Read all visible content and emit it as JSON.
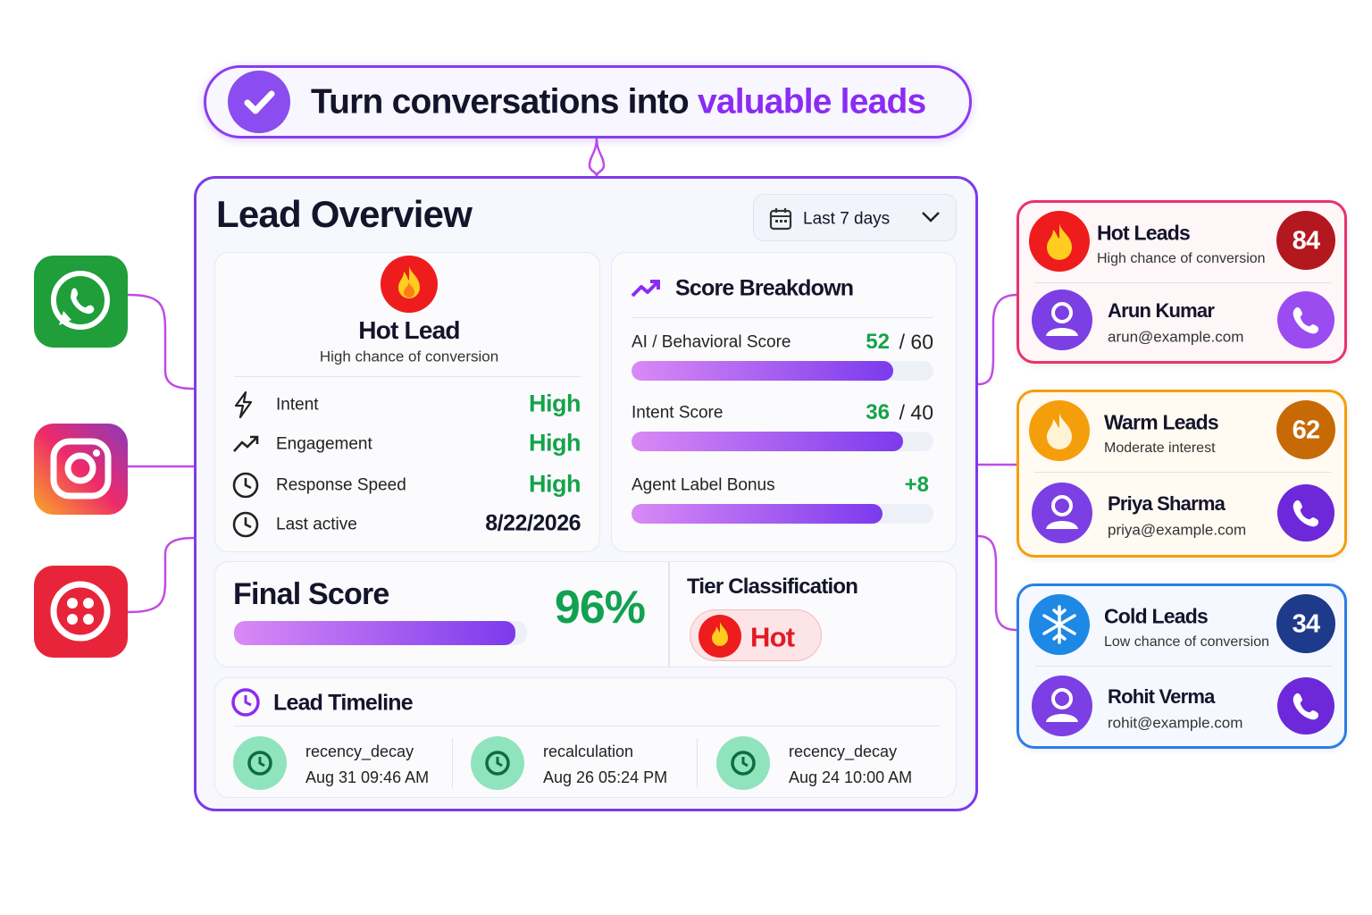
{
  "header": {
    "title": "Turn conversations into",
    "highlight": "valuable leads"
  },
  "overview": {
    "title": "Lead Overview",
    "date_range": "Last 7 days",
    "lead": {
      "tier": "Hot Lead",
      "subtitle": "High chance of conversion",
      "metrics": [
        {
          "label": "Intent",
          "value": "High"
        },
        {
          "label": "Engagement",
          "value": "High"
        },
        {
          "label": "Response Speed",
          "value": "High"
        },
        {
          "label": "Last active",
          "value": "8/22/2026"
        }
      ]
    },
    "score_breakdown": {
      "title": "Score Breakdown",
      "items": [
        {
          "label": "AI / Behavioral Score",
          "score": 52,
          "max": {
            "value": 60,
            "label": "/ 60"
          }
        },
        {
          "label": "Intent Score",
          "score": 36,
          "max": {
            "value": 40,
            "label": "/ 40"
          }
        },
        {
          "label": "Agent Label Bonus",
          "score": {
            "value": 8,
            "label": "+8"
          }
        }
      ]
    },
    "final_score": {
      "title": "Final Score",
      "score": {
        "value": 96,
        "label": "96%"
      }
    },
    "tier": {
      "title": "Tier Classification",
      "label": "Hot"
    },
    "timeline": {
      "title": "Lead Timeline",
      "events": [
        {
          "event": "recency_decay",
          "time": "Aug 31 09:46 AM"
        },
        {
          "event": "recalculation",
          "time": "Aug 26 05:24 PM"
        },
        {
          "event": "recency_decay",
          "time": "Aug 24 10:00 AM"
        }
      ]
    }
  },
  "lead_groups": [
    {
      "title": "Hot Leads",
      "subtitle": "High chance of conversion",
      "count": 84,
      "contact": {
        "name": "Arun Kumar",
        "email": "arun@example.com"
      }
    },
    {
      "title": "Warm Leads",
      "subtitle": "Moderate interest",
      "count": 62,
      "contact": {
        "name": "Priya Sharma",
        "email": "priya@example.com"
      }
    },
    {
      "title": "Cold Leads",
      "subtitle": "Low chance of conversion",
      "count": 34,
      "contact": {
        "name": "Rohit Verma",
        "email": "rohit@example.com"
      }
    }
  ]
}
